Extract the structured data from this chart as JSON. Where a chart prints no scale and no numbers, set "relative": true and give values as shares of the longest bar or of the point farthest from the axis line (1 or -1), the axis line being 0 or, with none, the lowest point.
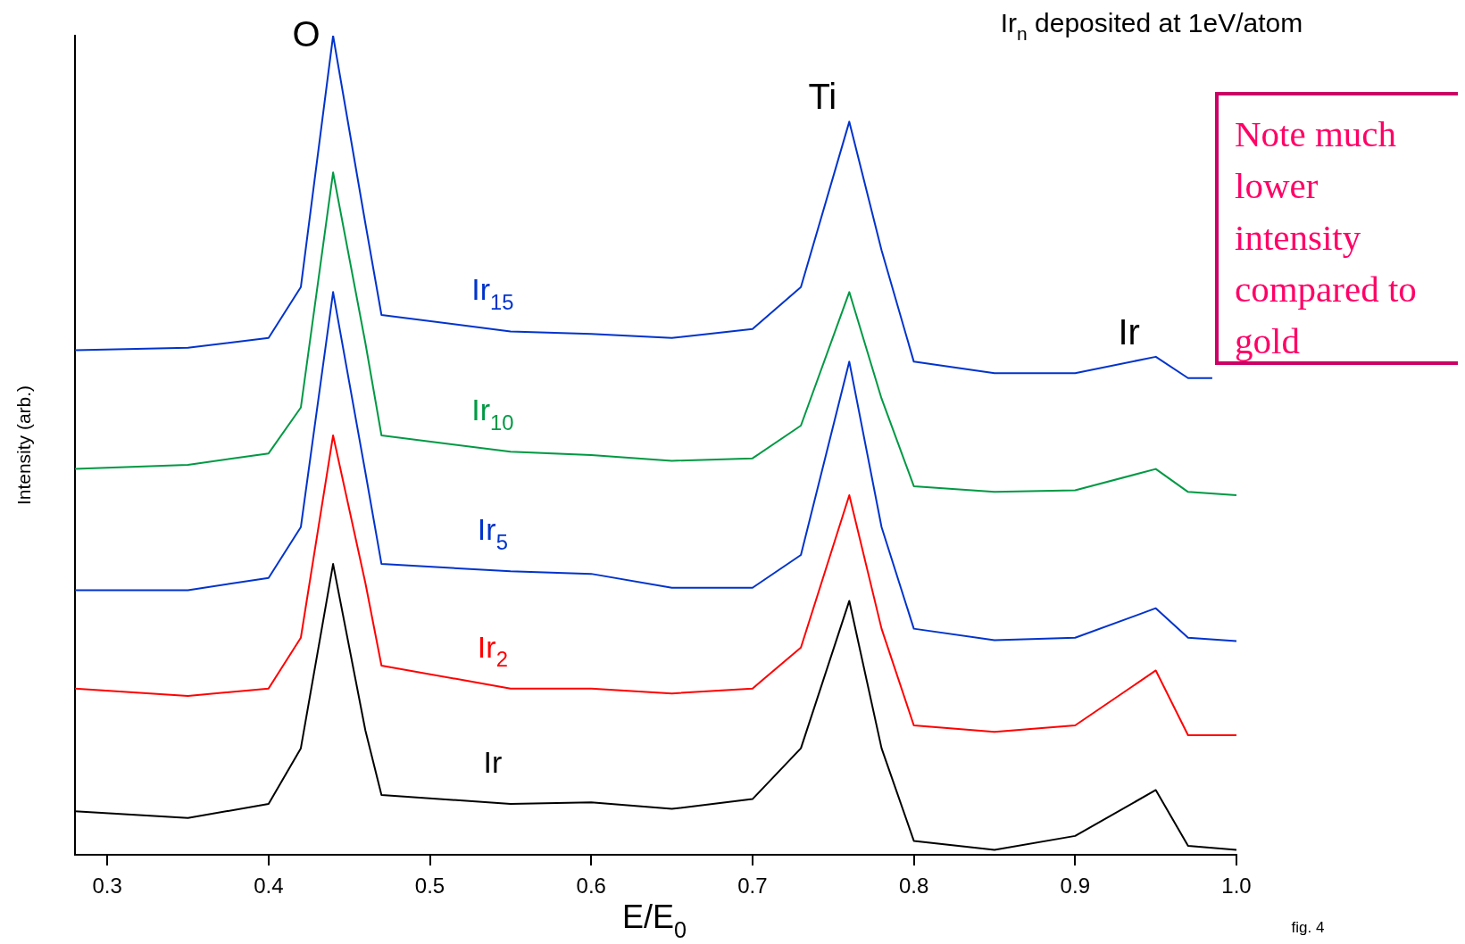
{
  "chart_data": {
    "type": "line",
    "title": "Ir$_{n}$ deposited at 1eV/atom",
    "xlabel": "E/E$_{0}$",
    "ylabel": "Intensity (arb.)",
    "relative": true,
    "legend": false,
    "grid": false,
    "marker": "none",
    "line_style": "solid",
    "xlim": [
      0.28,
      1.0
    ],
    "xticks": [
      0.3,
      0.4,
      0.5,
      0.6,
      0.7,
      0.8,
      0.9,
      {
        "value": 1,
        "label": "1.0"
      }
    ],
    "x": [
      0.28,
      0.35,
      0.4,
      0.42,
      0.44,
      0.46,
      0.47,
      0.55,
      0.6,
      0.65,
      0.7,
      0.73,
      0.76,
      0.78,
      0.8,
      0.85,
      0.9,
      0.95,
      0.97,
      1.0
    ],
    "series": [
      {
        "name": "Ir$_{15}$",
        "color": "#0033cc",
        "x": [
          0.28,
          0.35,
          0.4,
          0.42,
          0.44,
          0.46,
          0.47,
          0.55,
          0.6,
          0.65,
          0.7,
          0.73,
          0.76,
          0.78,
          0.8,
          0.85,
          0.9,
          0.95,
          0.97,
          0.985
        ],
        "values": [
          0.616,
          0.619,
          0.631,
          0.693,
          1,
          0.771,
          0.659,
          0.639,
          0.636,
          0.631,
          0.642,
          0.693,
          0.895,
          0.738,
          0.602,
          0.588,
          0.588,
          0.608,
          0.582,
          0.582
        ]
      },
      {
        "name": "Ir$_{10}$",
        "color": "#009944",
        "values": [
          0.471,
          0.476,
          0.49,
          0.546,
          0.833,
          0.625,
          0.512,
          0.492,
          0.488,
          0.481,
          0.484,
          0.524,
          0.687,
          0.557,
          0.45,
          0.443,
          0.445,
          0.471,
          0.443,
          0.439
        ]
      },
      {
        "name": "Ir$_{5}$",
        "color": "#0033cc",
        "values": [
          0.323,
          0.323,
          0.338,
          0.4,
          0.687,
          0.467,
          0.355,
          0.346,
          0.343,
          0.326,
          0.326,
          0.366,
          0.602,
          0.4,
          0.276,
          0.262,
          0.265,
          0.301,
          0.265,
          0.261
        ]
      },
      {
        "name": "Ir$_{2}$",
        "color": "#ff0000",
        "values": [
          0.203,
          0.194,
          0.203,
          0.265,
          0.512,
          0.332,
          0.231,
          0.203,
          0.203,
          0.197,
          0.203,
          0.253,
          0.439,
          0.276,
          0.158,
          0.15,
          0.158,
          0.225,
          0.146,
          0.146
        ]
      },
      {
        "name": "Ir",
        "color": "#000000",
        "values": [
          0.053,
          0.045,
          0.062,
          0.13,
          0.355,
          0.152,
          0.073,
          0.062,
          0.064,
          0.056,
          0.068,
          0.13,
          0.31,
          0.13,
          0.017,
          0.006,
          0.023,
          0.079,
          0.011,
          0.006
        ]
      }
    ],
    "annotations": [
      {
        "text": "O",
        "x": 0.44,
        "y": 1
      },
      {
        "text": "Ti",
        "x": 0.76,
        "y": 0.895
      },
      {
        "text": "Ir",
        "x": 0.95,
        "y": 0.608
      },
      "Note much lower intensity compared to gold",
      "fig. 4"
    ]
  }
}
